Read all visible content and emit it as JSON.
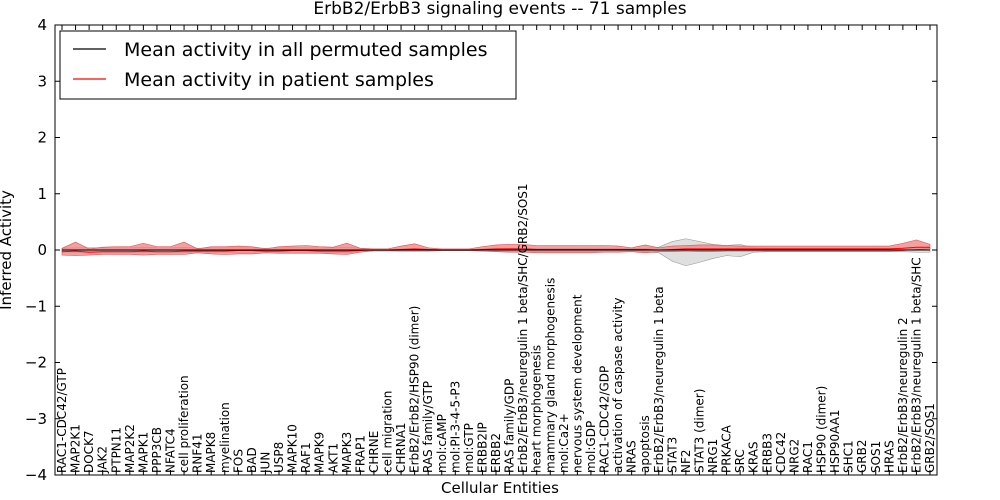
{
  "chart_data": {
    "type": "line",
    "title": "ErbB2/ErbB3 signaling events -- 71 samples",
    "xlabel": "Cellular Entities",
    "ylabel": "Inferred Activity",
    "ylim": [
      -4,
      4
    ],
    "yticks": [
      -4,
      -3,
      -2,
      -1,
      0,
      1,
      2,
      3,
      4
    ],
    "ytick_labels": [
      "−4",
      "−3",
      "−2",
      "−1",
      "0",
      "1",
      "2",
      "3",
      "4"
    ],
    "legend_position": "top-left",
    "colors": {
      "permuted": "#000000",
      "patient": "#ff0000",
      "patient_band": "#f08080",
      "permuted_band": "#bfbfbf"
    },
    "categories": [
      "RAC1-CDC42/GTP",
      "MAP2K1",
      "DOCK7",
      "JAK2",
      "PTPN11",
      "MAP2K2",
      "MAPK1",
      "PPP3CB",
      "NFATC4",
      "cell proliferation",
      "RNF41",
      "MAPK8",
      "myelination",
      "FOS",
      "BAD",
      "JUN",
      "USP8",
      "MAPK10",
      "RAF1",
      "MAPK9",
      "AKT1",
      "MAPK3",
      "FRAP1",
      "CHRNE",
      "cell migration",
      "CHRNA1",
      "ErbB2/ErbB2/HSP90 (dimer)",
      "RAS family/GTP",
      "mol:cAMP",
      "mol:PI-3-4-5-P3",
      "mol:GTP",
      "ERBB2IP",
      "ERBB2",
      "RAS family/GDP",
      "ErbB2/ErbB3/neuregulin 1 beta/SHC/GRB2/SOS1",
      "heart morphogenesis",
      "mammary gland morphogenesis",
      "mol:Ca2+",
      "nervous system development",
      "mol:GDP",
      "RAC1-CDC42/GDP",
      "activation of caspase activity",
      "NRAS",
      "apoptosis",
      "ErbB2/ErbB3/neuregulin 1 beta",
      "STAT3",
      "NF2",
      "STAT3 (dimer)",
      "NRG1",
      "PRKACA",
      "SRC",
      "KRAS",
      "ERBB3",
      "CDC42",
      "NRG2",
      "RAC1",
      "HSP90 (dimer)",
      "HSP90AA1",
      "SHC1",
      "GRB2",
      "SOS1",
      "HRAS",
      "ErbB2/ErbB3/neuregulin 2",
      "ErbB2/ErbB3/neuregulin 1 beta/SHC",
      "GRB2/SOS1"
    ],
    "series": [
      {
        "name": "Mean activity in all permuted samples",
        "values": [
          0,
          0,
          0,
          0,
          0,
          0,
          0,
          0,
          0,
          0,
          0,
          0,
          0,
          0,
          0,
          0,
          0,
          0,
          0,
          0,
          0,
          0,
          0,
          0,
          0,
          0,
          0,
          0,
          0,
          0,
          0,
          0,
          0,
          0,
          0,
          0,
          0,
          0,
          0,
          0,
          0,
          0,
          0,
          0,
          0,
          0,
          0,
          0,
          0,
          0,
          0,
          0,
          0,
          0,
          0,
          0,
          0,
          0,
          0,
          0,
          0,
          0,
          0,
          0,
          0
        ],
        "band_low": [
          -0.03,
          -0.04,
          -0.04,
          -0.04,
          -0.04,
          -0.04,
          -0.05,
          -0.04,
          -0.04,
          -0.05,
          -0.03,
          -0.04,
          -0.04,
          -0.04,
          -0.04,
          -0.03,
          -0.04,
          -0.04,
          -0.04,
          -0.04,
          -0.04,
          -0.05,
          -0.03,
          -0.02,
          -0.02,
          -0.02,
          -0.02,
          -0.02,
          -0.01,
          -0.01,
          -0.01,
          -0.02,
          -0.02,
          -0.03,
          -0.03,
          -0.03,
          -0.03,
          -0.03,
          -0.03,
          -0.03,
          -0.03,
          -0.03,
          -0.03,
          -0.03,
          -0.05,
          -0.2,
          -0.28,
          -0.22,
          -0.15,
          -0.1,
          -0.12,
          -0.04,
          -0.03,
          -0.03,
          -0.03,
          -0.03,
          -0.03,
          -0.03,
          -0.03,
          -0.03,
          -0.03,
          -0.03,
          -0.03,
          -0.04,
          -0.04
        ],
        "band_high": [
          0.03,
          0.04,
          0.04,
          0.04,
          0.04,
          0.04,
          0.05,
          0.04,
          0.04,
          0.05,
          0.03,
          0.04,
          0.04,
          0.04,
          0.04,
          0.03,
          0.04,
          0.04,
          0.04,
          0.04,
          0.04,
          0.05,
          0.03,
          0.02,
          0.02,
          0.02,
          0.02,
          0.02,
          0.01,
          0.01,
          0.01,
          0.02,
          0.02,
          0.03,
          0.03,
          0.03,
          0.03,
          0.03,
          0.03,
          0.03,
          0.03,
          0.03,
          0.03,
          0.03,
          0.05,
          0.15,
          0.2,
          0.15,
          0.1,
          0.08,
          0.1,
          0.04,
          0.03,
          0.03,
          0.03,
          0.03,
          0.03,
          0.03,
          0.03,
          0.03,
          0.03,
          0.03,
          0.03,
          0.04,
          0.04
        ]
      },
      {
        "name": "Mean activity in patient samples",
        "values": [
          -0.03,
          -0.02,
          -0.04,
          -0.03,
          -0.03,
          -0.03,
          -0.02,
          -0.03,
          -0.03,
          -0.02,
          -0.02,
          -0.02,
          -0.02,
          -0.01,
          -0.01,
          -0.02,
          -0.02,
          -0.01,
          -0.01,
          -0.02,
          -0.02,
          -0.02,
          -0.01,
          0,
          0,
          0.01,
          0.02,
          0.01,
          0,
          0,
          0,
          0.01,
          0.02,
          0.02,
          0.02,
          0.01,
          0.01,
          0.01,
          0.01,
          0.01,
          0.01,
          0.01,
          0.01,
          0.01,
          0,
          0.01,
          0.02,
          0.02,
          0.02,
          0.02,
          0.02,
          0.02,
          0.02,
          0.02,
          0.02,
          0.02,
          0.02,
          0.02,
          0.02,
          0.02,
          0.02,
          0.02,
          0.03,
          0.05,
          0.05
        ],
        "band_low": [
          -0.09,
          -0.1,
          -0.09,
          -0.08,
          -0.08,
          -0.08,
          -0.09,
          -0.08,
          -0.08,
          -0.08,
          -0.05,
          -0.07,
          -0.08,
          -0.07,
          -0.07,
          -0.05,
          -0.06,
          -0.06,
          -0.06,
          -0.06,
          -0.07,
          -0.08,
          -0.04,
          -0.01,
          -0.01,
          -0.02,
          -0.02,
          -0.02,
          -0.01,
          -0.01,
          -0.01,
          -0.02,
          -0.03,
          -0.04,
          -0.04,
          -0.05,
          -0.05,
          -0.05,
          -0.05,
          -0.05,
          -0.04,
          -0.04,
          -0.03,
          -0.05,
          -0.03,
          -0.03,
          -0.02,
          -0.03,
          -0.03,
          -0.02,
          -0.02,
          -0.02,
          -0.02,
          -0.02,
          -0.02,
          -0.02,
          -0.02,
          -0.02,
          -0.02,
          -0.02,
          -0.02,
          -0.02,
          -0.01,
          0.01,
          0.02
        ],
        "band_high": [
          0.03,
          0.14,
          0.02,
          0.05,
          0.06,
          0.06,
          0.12,
          0.06,
          0.06,
          0.14,
          0.02,
          0.06,
          0.06,
          0.07,
          0.06,
          0.02,
          0.06,
          0.07,
          0.08,
          0.06,
          0.05,
          0.12,
          0.03,
          0.02,
          0.02,
          0.07,
          0.11,
          0.04,
          0.02,
          0.02,
          0.02,
          0.06,
          0.09,
          0.1,
          0.1,
          0.08,
          0.08,
          0.08,
          0.08,
          0.08,
          0.08,
          0.07,
          0.04,
          0.09,
          0.04,
          0.07,
          0.08,
          0.09,
          0.09,
          0.08,
          0.07,
          0.07,
          0.07,
          0.07,
          0.07,
          0.07,
          0.07,
          0.07,
          0.07,
          0.07,
          0.07,
          0.07,
          0.12,
          0.18,
          0.1
        ]
      }
    ]
  }
}
